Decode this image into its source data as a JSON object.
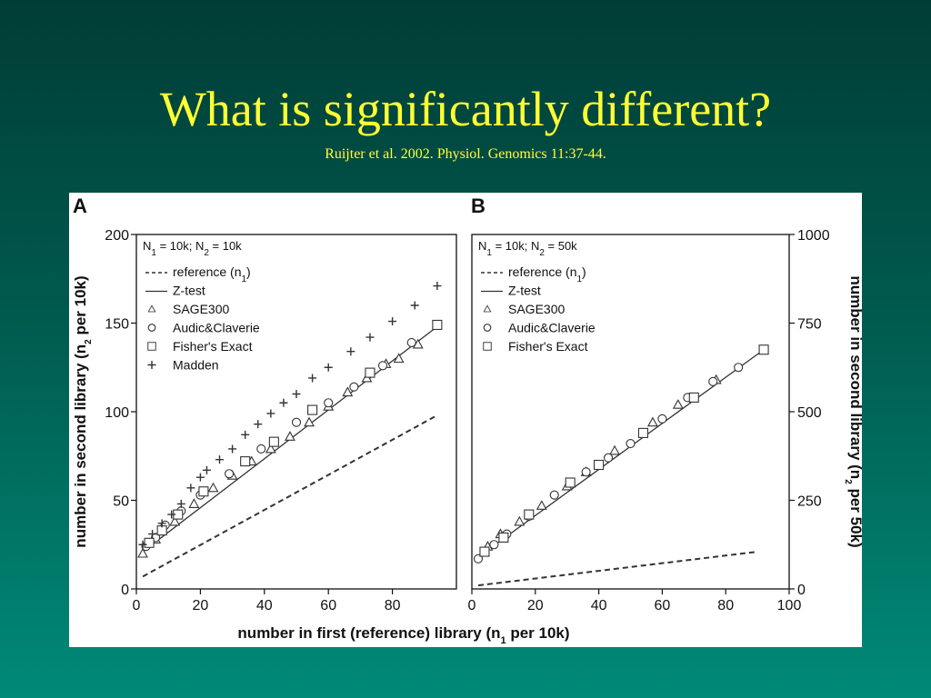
{
  "slide": {
    "title": "What is significantly different?",
    "subtitle": "Ruijter et al. 2002. Physiol. Genomics 11:37-44."
  },
  "colors": {
    "title": "#ffff33",
    "background_top": "#003d36",
    "background_bottom": "#008a78",
    "ink": "#111111"
  },
  "figure": {
    "shared_xlabel": "number in first (reference) library (n",
    "shared_xlabel_sub": "1",
    "shared_xlabel_tail": " per 10k)"
  },
  "chart_data": [
    {
      "panel_label": "A",
      "type": "scatter",
      "annotation": {
        "pre1": "N",
        "sub1": "1",
        "mid": " = 10k; N",
        "sub2": "2",
        "post": " = 10k"
      },
      "ylabel": {
        "pre": "number in second library (n",
        "sub": "2",
        "post": " per 10k)"
      },
      "xlim": [
        0,
        100
      ],
      "ylim": [
        0,
        200
      ],
      "xticks": [
        0,
        20,
        40,
        60,
        80
      ],
      "yticks": [
        0,
        50,
        100,
        150,
        200
      ],
      "y_axis_side": "left",
      "legend_position": "top-left",
      "legend": [
        {
          "label": "reference (n",
          "sub": "1",
          "tail": ")",
          "marker": "dash"
        },
        {
          "label": "Z-test",
          "marker": "line"
        },
        {
          "label": "SAGE300",
          "marker": "triangle"
        },
        {
          "label": "Audic&Claverie",
          "marker": "circle"
        },
        {
          "label": "Fisher's Exact",
          "marker": "square"
        },
        {
          "label": "Madden",
          "marker": "plus"
        }
      ],
      "series": [
        {
          "name": "reference (n1)",
          "style": "dash",
          "x": [
            2,
            94
          ],
          "y": [
            7,
            98
          ]
        },
        {
          "name": "Z-test",
          "style": "line",
          "x": [
            2,
            94
          ],
          "y": [
            21,
            148
          ]
        },
        {
          "name": "SAGE300",
          "style": "triangle",
          "x": [
            2,
            6,
            12,
            18,
            24,
            30,
            36,
            42,
            48,
            54,
            60,
            66,
            72,
            78,
            82,
            88
          ],
          "y": [
            20,
            28,
            38,
            48,
            57,
            64,
            72,
            79,
            86,
            94,
            103,
            111,
            119,
            127,
            130,
            138
          ]
        },
        {
          "name": "Audic&Claverie",
          "style": "circle",
          "x": [
            3,
            6,
            9,
            14,
            20,
            29,
            39,
            50,
            60,
            68,
            77,
            86
          ],
          "y": [
            24,
            29,
            36,
            44,
            53,
            65,
            79,
            94,
            105,
            114,
            126,
            139
          ]
        },
        {
          "name": "Fisher's Exact",
          "style": "square",
          "x": [
            4,
            8,
            13,
            21,
            34,
            43,
            55,
            73,
            94
          ],
          "y": [
            26,
            33,
            42,
            55,
            72,
            83,
            101,
            122,
            149
          ]
        },
        {
          "name": "Madden",
          "style": "plus",
          "x": [
            2,
            5,
            8,
            11,
            14,
            17,
            20,
            22,
            26,
            30,
            34,
            38,
            42,
            46,
            50,
            55,
            60,
            67,
            73,
            80,
            87,
            94
          ],
          "y": [
            25,
            31,
            37,
            42,
            48,
            57,
            63,
            67,
            73,
            79,
            87,
            93,
            99,
            105,
            110,
            119,
            125,
            134,
            142,
            151,
            160,
            171
          ]
        }
      ]
    },
    {
      "panel_label": "B",
      "type": "scatter",
      "annotation": {
        "pre1": "N",
        "sub1": "1",
        "mid": " = 10k; N",
        "sub2": "2",
        "post": " = 50k"
      },
      "ylabel": {
        "pre": "number in second library (n",
        "sub": "2",
        "post": " per 50k)"
      },
      "xlim": [
        0,
        100
      ],
      "ylim": [
        0,
        1000
      ],
      "xticks": [
        0,
        20,
        40,
        60,
        80,
        100
      ],
      "yticks": [
        0,
        250,
        500,
        750,
        1000
      ],
      "y_axis_side": "right",
      "legend_position": "top-left",
      "legend": [
        {
          "label": "reference (n",
          "sub": "1",
          "tail": ")",
          "marker": "dash"
        },
        {
          "label": "Z-test",
          "marker": "line"
        },
        {
          "label": "SAGE300",
          "marker": "triangle"
        },
        {
          "label": "Audic&Claverie",
          "marker": "circle"
        },
        {
          "label": "Fisher's Exact",
          "marker": "square"
        }
      ],
      "series": [
        {
          "name": "reference (n1)",
          "style": "dash",
          "x": [
            2,
            90
          ],
          "y": [
            10,
            105
          ]
        },
        {
          "name": "Z-test",
          "style": "line",
          "x": [
            2,
            92
          ],
          "y": [
            90,
            675
          ]
        },
        {
          "name": "SAGE300",
          "style": "triangle",
          "x": [
            5,
            9,
            15,
            22,
            30,
            36,
            45,
            57,
            65,
            77
          ],
          "y": [
            120,
            155,
            190,
            235,
            290,
            330,
            390,
            470,
            520,
            590
          ]
        },
        {
          "name": "Audic&Claverie",
          "style": "circle",
          "x": [
            2,
            7,
            11,
            18,
            26,
            36,
            43,
            50,
            60,
            68,
            76,
            84
          ],
          "y": [
            85,
            125,
            155,
            205,
            265,
            330,
            370,
            410,
            480,
            540,
            585,
            625
          ]
        },
        {
          "name": "Fisher's Exact",
          "style": "square",
          "x": [
            4,
            10,
            18,
            31,
            40,
            54,
            70,
            92
          ],
          "y": [
            105,
            145,
            210,
            300,
            350,
            440,
            540,
            675
          ]
        }
      ]
    }
  ]
}
